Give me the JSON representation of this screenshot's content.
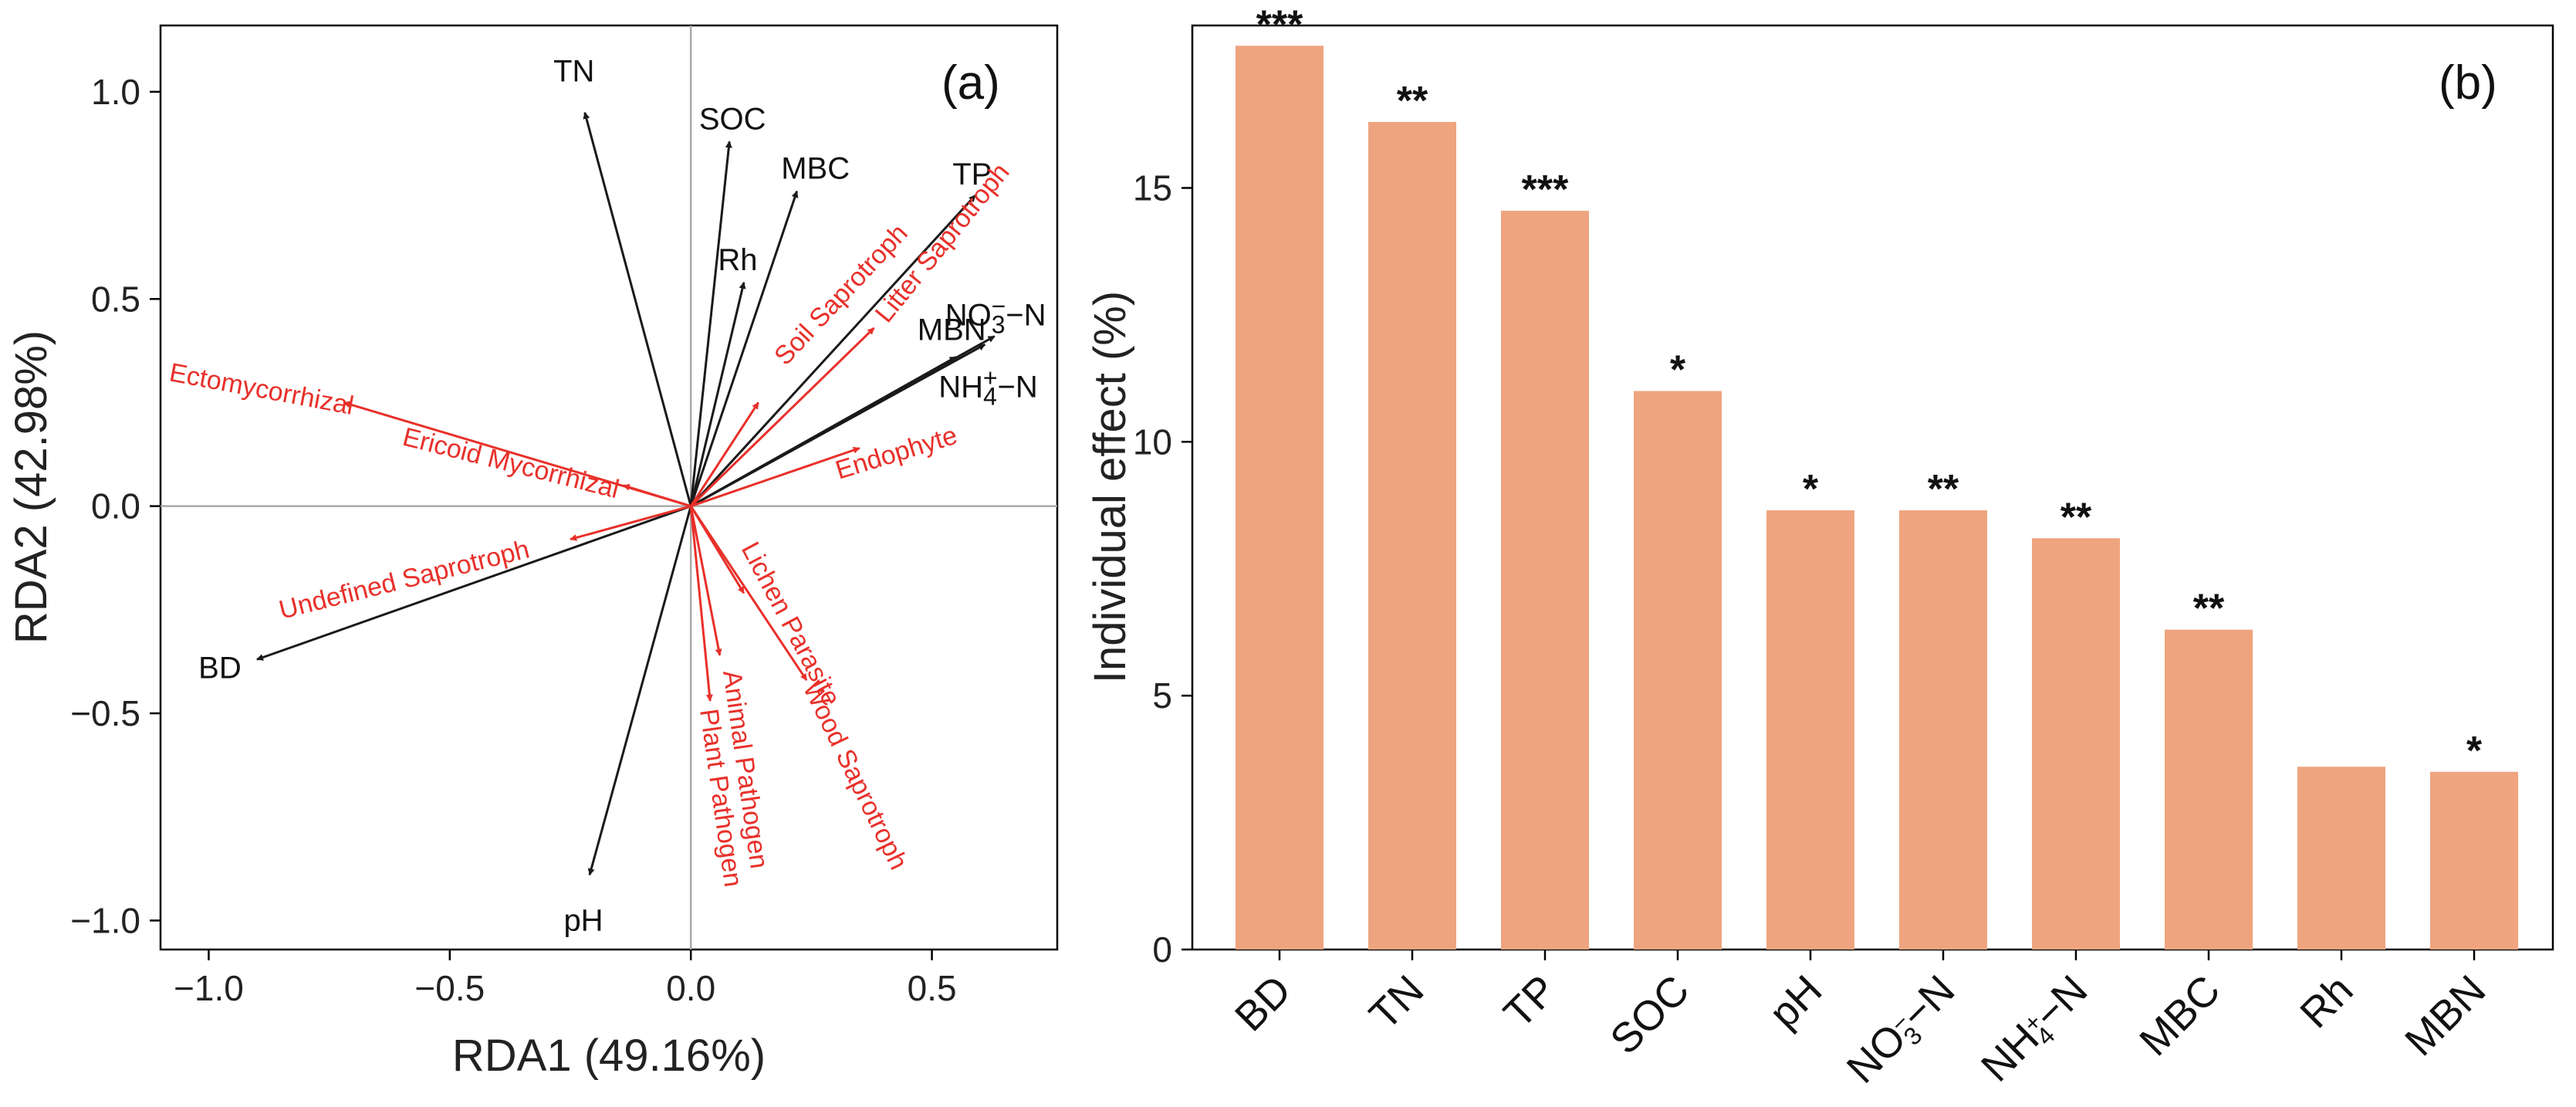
{
  "colors": {
    "env_arrow": "#1a1a1a",
    "fun_arrow": "#e8302a",
    "bar": "#eea47f",
    "zero_line": "#aaaaaa"
  },
  "chart_data": [
    {
      "type": "scatter",
      "panel": "(a)",
      "xlabel": "RDA1 (49.16%)",
      "ylabel": "RDA2 (42.98%)",
      "xlim": [
        -1.1,
        0.76
      ],
      "ylim": [
        -1.07,
        1.16
      ],
      "xticks": [
        -1.0,
        -0.5,
        0.0,
        0.5
      ],
      "xtick_labels": [
        "−1.0",
        "−0.5",
        "0.0",
        "0.5"
      ],
      "yticks": [
        -1.0,
        -0.5,
        0.0,
        0.5,
        1.0
      ],
      "ytick_labels": [
        "−1.0",
        "−0.5",
        "0.0",
        "0.5",
        "1.0"
      ],
      "env_vectors": [
        {
          "name": "TN",
          "x": -0.22,
          "y": 0.95
        },
        {
          "name": "SOC",
          "x": 0.08,
          "y": 0.88
        },
        {
          "name": "MBC",
          "x": 0.22,
          "y": 0.76
        },
        {
          "name": "TP",
          "x": 0.59,
          "y": 0.75
        },
        {
          "name": "Rh",
          "x": 0.11,
          "y": 0.54
        },
        {
          "name": "NO3−N",
          "x": 0.63,
          "y": 0.41,
          "base": "NO",
          "sub": "3",
          "sup": "−",
          "tail": "−N"
        },
        {
          "name": "MBN",
          "x": 0.55,
          "y": 0.36
        },
        {
          "name": "NH4+−N",
          "x": 0.61,
          "y": 0.39,
          "base": "NH",
          "sub": "4",
          "sup": "+",
          "tail": "−N"
        },
        {
          "name": "BD",
          "x": -0.9,
          "y": -0.37
        },
        {
          "name": "pH",
          "x": -0.21,
          "y": -0.89
        }
      ],
      "fungal_vectors": [
        {
          "name": "Ectomycorrhizal",
          "x": -0.72,
          "y": 0.25
        },
        {
          "name": "Ericoid Mycorrhizal",
          "x": -0.14,
          "y": 0.05
        },
        {
          "name": "Undefined Saprotroph",
          "x": -0.25,
          "y": -0.08
        },
        {
          "name": "Soil Saprotroph",
          "x": 0.14,
          "y": 0.25
        },
        {
          "name": "Litter Saprotroph",
          "x": 0.38,
          "y": 0.43
        },
        {
          "name": "Endophyte",
          "x": 0.35,
          "y": 0.14
        },
        {
          "name": "Lichen Parasite",
          "x": 0.11,
          "y": -0.21
        },
        {
          "name": "Wood Saprotroph",
          "x": 0.24,
          "y": -0.42
        },
        {
          "name": "Animal Pathogen",
          "x": 0.06,
          "y": -0.36
        },
        {
          "name": "Plant Pathogen",
          "x": 0.04,
          "y": -0.47
        }
      ]
    },
    {
      "type": "bar",
      "panel": "(b)",
      "ylabel": "Individual effect (%)",
      "ylim": [
        0,
        18.2
      ],
      "yticks": [
        0,
        5,
        10,
        15
      ],
      "categories": [
        "BD",
        "TN",
        "TP",
        "SOC",
        "pH",
        "NO3−N",
        "NH4+−N",
        "MBC",
        "Rh",
        "MBN"
      ],
      "category_labels": [
        {
          "base": "BD"
        },
        {
          "base": "TN"
        },
        {
          "base": "TP"
        },
        {
          "base": "SOC"
        },
        {
          "base": "pH"
        },
        {
          "base": "NO",
          "sub": "3",
          "sup": "−",
          "tail": "−N"
        },
        {
          "base": "NH",
          "sub": "4",
          "sup": "+",
          "tail": "−N"
        },
        {
          "base": "MBC"
        },
        {
          "base": "Rh"
        },
        {
          "base": "MBN"
        }
      ],
      "values": [
        17.8,
        16.3,
        14.55,
        11.0,
        8.65,
        8.65,
        8.1,
        6.3,
        3.6,
        3.5
      ],
      "significance": [
        "***",
        "**",
        "***",
        "*",
        "*",
        "**",
        "**",
        "**",
        "",
        "*"
      ]
    }
  ]
}
